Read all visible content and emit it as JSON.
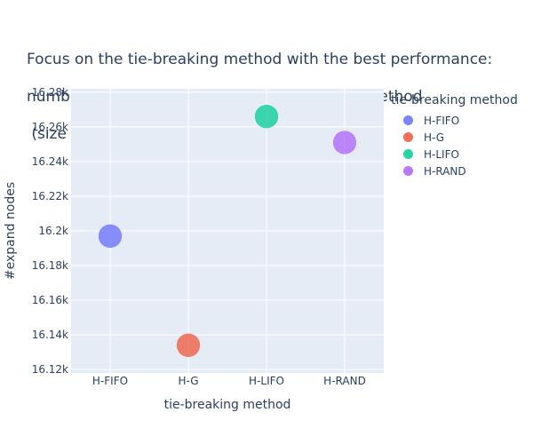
{
  "chart_data": {
    "type": "scatter",
    "title_lines": [
      "Focus on the tie-breaking method with the best performance:",
      "number of expanded nodes vs. Tie breaking method",
      " (size = #nodes in memory)"
    ],
    "xlabel": "tie-breaking method",
    "ylabel": "#expand nodes",
    "categories": [
      "H-FIFO",
      "H-G",
      "H-LIFO",
      "H-RAND"
    ],
    "ylim": [
      16118,
      16282
    ],
    "yticks": [
      16120,
      16140,
      16160,
      16180,
      16200,
      16220,
      16240,
      16260,
      16280
    ],
    "ytick_labels": [
      "16.12k",
      "16.14k",
      "16.16k",
      "16.18k",
      "16.2k",
      "16.22k",
      "16.24k",
      "16.26k",
      "16.28k"
    ],
    "legend_title": "tie-breaking method",
    "legend_position": "right",
    "grid": true,
    "series": [
      {
        "name": "H-FIFO",
        "x": "H-FIFO",
        "y": 16197,
        "color": "#636efa"
      },
      {
        "name": "H-G",
        "x": "H-G",
        "y": 16134,
        "color": "#ef553b"
      },
      {
        "name": "H-LIFO",
        "x": "H-LIFO",
        "y": 16266,
        "color": "#00cc96"
      },
      {
        "name": "H-RAND",
        "x": "H-RAND",
        "y": 16251,
        "color": "#ab63fa"
      }
    ],
    "plot_bgcolor": "#e5ecf6"
  }
}
